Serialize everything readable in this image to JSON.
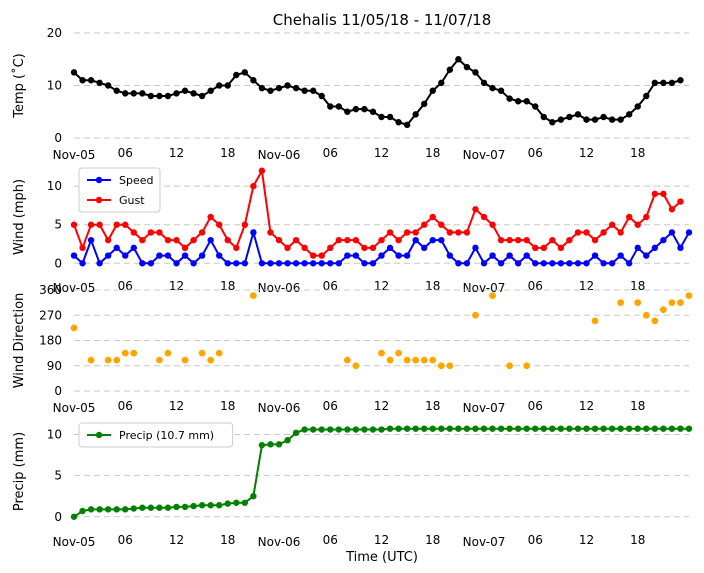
{
  "title": "Chehalis 11/05/18 - 11/07/18",
  "xlabel": "Time (UTC)",
  "x_tick_labels": [
    "Nov-05",
    "06",
    "12",
    "18",
    "Nov-06",
    "06",
    "12",
    "18",
    "Nov-07",
    "06",
    "12",
    "18"
  ],
  "x_tick_hours": [
    0,
    6,
    12,
    18,
    24,
    30,
    36,
    42,
    48,
    54,
    60,
    66
  ],
  "x_range_hours": [
    0,
    72
  ],
  "chart_data": [
    {
      "type": "line",
      "ylabel": "Temp (˚C)",
      "ylim": [
        0,
        20
      ],
      "yticks": [
        0,
        10,
        20
      ],
      "x_unit": "hours since Nov-05 00 UTC",
      "series": [
        {
          "name": "",
          "color": "#000000",
          "values": [
            12.5,
            11,
            11,
            10.5,
            10,
            9,
            8.5,
            8.5,
            8.5,
            8,
            8,
            8,
            8.5,
            9,
            8.5,
            8,
            9,
            10,
            10,
            12,
            12.5,
            11,
            9.5,
            9,
            9.5,
            10,
            9.5,
            9,
            9,
            8,
            6,
            6,
            5,
            5.5,
            5.5,
            5,
            4,
            4,
            3,
            2.5,
            4.5,
            6.5,
            9,
            10.5,
            13,
            15,
            13.5,
            12.5,
            10.5,
            9.5,
            9,
            7.5,
            7,
            7,
            6,
            4,
            3,
            3.5,
            4,
            4.5,
            3.5,
            3.5,
            4,
            3.5,
            3.5,
            4.5,
            6,
            8,
            10.5,
            10.5,
            10.5,
            11
          ]
        }
      ]
    },
    {
      "type": "line",
      "ylabel": "Wind (mph)",
      "ylim": [
        -1,
        13
      ],
      "yticks": [
        0,
        5,
        10
      ],
      "legend": "top-left",
      "series": [
        {
          "name": "Speed",
          "color": "#0000ff",
          "values": [
            1,
            0,
            3,
            0,
            1,
            2,
            1,
            2,
            0,
            0,
            1,
            1,
            0,
            1,
            0,
            1,
            3,
            1,
            0,
            0,
            0,
            4,
            0,
            0,
            0,
            0,
            0,
            0,
            0,
            0,
            0,
            0,
            1,
            1,
            0,
            0,
            1,
            2,
            1,
            1,
            3,
            2,
            3,
            3,
            1,
            0,
            0,
            2,
            0,
            1,
            0,
            1,
            0,
            1,
            0,
            0,
            0,
            0,
            0,
            0,
            0,
            1,
            0,
            0,
            1,
            0,
            2,
            1,
            2,
            3,
            4,
            2,
            4
          ]
        },
        {
          "name": "Gust",
          "color": "#ff0000",
          "values": [
            5,
            2,
            5,
            5,
            3,
            5,
            5,
            4,
            3,
            4,
            4,
            3,
            3,
            2,
            3,
            4,
            6,
            5,
            3,
            2,
            5,
            10,
            12,
            4,
            3,
            2,
            3,
            2,
            1,
            1,
            2,
            3,
            3,
            3,
            2,
            2,
            3,
            4,
            3,
            4,
            4,
            5,
            6,
            5,
            4,
            4,
            4,
            7,
            6,
            5,
            3,
            3,
            3,
            3,
            2,
            2,
            3,
            2,
            3,
            4,
            4,
            3,
            4,
            5,
            4,
            6,
            5,
            6,
            9,
            9,
            7,
            8
          ]
        }
      ]
    },
    {
      "type": "scatter",
      "ylabel": "Wind Direction",
      "ylim": [
        0,
        360
      ],
      "yticks": [
        0,
        90,
        180,
        270,
        360
      ],
      "series": [
        {
          "name": "",
          "color": "#ffa500",
          "points": [
            [
              0,
              225
            ],
            [
              2,
              110
            ],
            [
              4,
              110
            ],
            [
              5,
              110
            ],
            [
              6,
              135
            ],
            [
              7,
              135
            ],
            [
              10,
              110
            ],
            [
              11,
              135
            ],
            [
              13,
              110
            ],
            [
              15,
              135
            ],
            [
              16,
              110
            ],
            [
              17,
              135
            ],
            [
              21,
              340
            ],
            [
              32,
              110
            ],
            [
              33,
              90
            ],
            [
              36,
              135
            ],
            [
              37,
              110
            ],
            [
              38,
              135
            ],
            [
              39,
              110
            ],
            [
              40,
              110
            ],
            [
              41,
              110
            ],
            [
              42,
              110
            ],
            [
              43,
              90
            ],
            [
              44,
              90
            ],
            [
              47,
              270
            ],
            [
              49,
              340
            ],
            [
              51,
              90
            ],
            [
              53,
              90
            ],
            [
              61,
              250
            ],
            [
              64,
              315
            ],
            [
              66,
              315
            ],
            [
              67,
              270
            ],
            [
              68,
              250
            ],
            [
              69,
              290
            ],
            [
              70,
              315
            ],
            [
              71,
              315
            ],
            [
              72,
              340
            ]
          ]
        }
      ]
    },
    {
      "type": "line",
      "ylabel": "Precip (mm)",
      "ylim": [
        -1,
        12
      ],
      "yticks": [
        0,
        5,
        10
      ],
      "legend": "top-left",
      "series": [
        {
          "name": "Precip (10.7 mm)",
          "color": "#008000",
          "values": [
            0,
            0.7,
            0.9,
            0.9,
            0.9,
            0.9,
            0.9,
            1,
            1.1,
            1.1,
            1.1,
            1.1,
            1.2,
            1.2,
            1.3,
            1.4,
            1.4,
            1.4,
            1.6,
            1.7,
            1.7,
            2.5,
            8.7,
            8.8,
            8.8,
            9.3,
            10.2,
            10.6,
            10.6,
            10.6,
            10.6,
            10.6,
            10.6,
            10.6,
            10.6,
            10.6,
            10.6,
            10.7,
            10.7,
            10.7,
            10.7,
            10.7,
            10.7,
            10.7,
            10.7,
            10.7,
            10.7,
            10.7,
            10.7,
            10.7,
            10.7,
            10.7,
            10.7,
            10.7,
            10.7,
            10.7,
            10.7,
            10.7,
            10.7,
            10.7,
            10.7,
            10.7,
            10.7,
            10.7,
            10.7,
            10.7,
            10.7,
            10.7,
            10.7,
            10.7,
            10.7,
            10.7,
            10.7
          ]
        }
      ]
    }
  ]
}
